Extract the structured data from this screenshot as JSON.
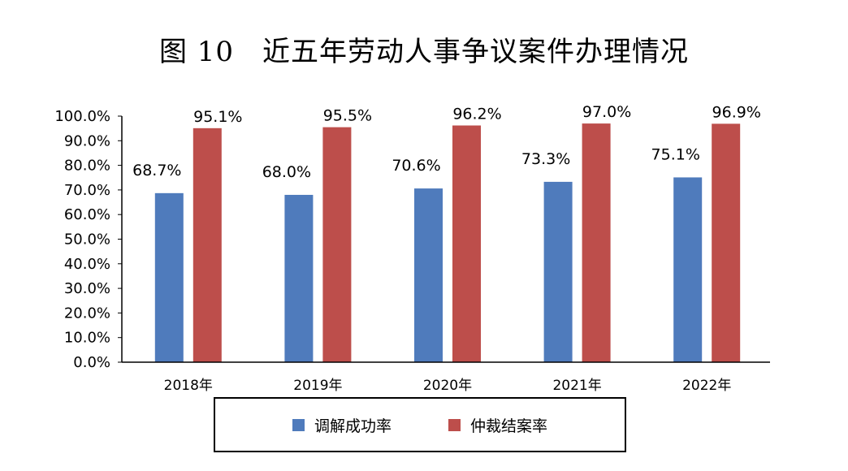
{
  "chart_data": {
    "type": "bar",
    "title": "图 10　近五年劳动人事争议案件办理情况",
    "categories": [
      "2018年",
      "2019年",
      "2020年",
      "2021年",
      "2022年"
    ],
    "series": [
      {
        "name": "调解成功率",
        "color": "#4f7bbc",
        "values": [
          68.7,
          68.0,
          70.6,
          73.3,
          75.1
        ],
        "labels": [
          "68.7%",
          "68.0%",
          "70.6%",
          "73.3%",
          "75.1%"
        ]
      },
      {
        "name": "仲裁结案率",
        "color": "#bd4e4b",
        "values": [
          95.1,
          95.5,
          96.2,
          97.0,
          96.9
        ],
        "labels": [
          "95.1%",
          "95.5%",
          "96.2%",
          "97.0%",
          "96.9%"
        ]
      }
    ],
    "ylim": [
      0,
      100
    ],
    "yticks": [
      0,
      10,
      20,
      30,
      40,
      50,
      60,
      70,
      80,
      90,
      100
    ],
    "ytick_labels": [
      "0.0%",
      "10.0%",
      "20.0%",
      "30.0%",
      "40.0%",
      "50.0%",
      "60.0%",
      "70.0%",
      "80.0%",
      "90.0%",
      "100.0%"
    ],
    "xlabel": "",
    "ylabel": "",
    "grid": false,
    "legend_position": "bottom"
  }
}
